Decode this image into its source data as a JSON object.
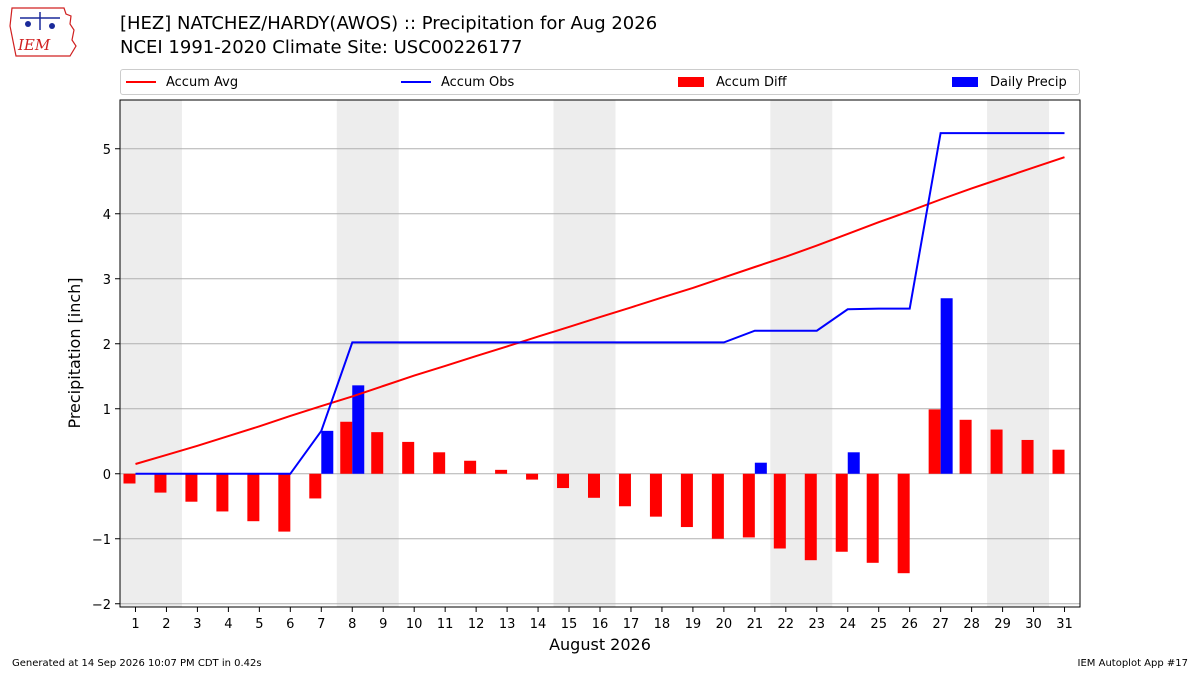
{
  "header": {
    "title_line1": "[HEZ] NATCHEZ/HARDY(AWOS) :: Precipitation for Aug 2026",
    "title_line2": "NCEI 1991-2020 Climate Site: USC00226177",
    "logo_text": "IEM"
  },
  "legend": {
    "items": [
      {
        "label": "Accum Avg",
        "color": "#ff0000",
        "kind": "line"
      },
      {
        "label": "Accum Obs",
        "color": "#0000ff",
        "kind": "line"
      },
      {
        "label": "Accum Diff",
        "color": "#ff0000",
        "kind": "bar"
      },
      {
        "label": "Daily Precip",
        "color": "#0000ff",
        "kind": "bar"
      }
    ]
  },
  "chart_data": {
    "type": "bar",
    "xlabel": "August 2026",
    "ylabel": "Precipitation [inch]",
    "ylim": [
      -2.05,
      5.75
    ],
    "yticks": [
      -2,
      -1,
      0,
      1,
      2,
      3,
      4,
      5
    ],
    "grid": true,
    "legend_position": "top",
    "x": [
      1,
      2,
      3,
      4,
      5,
      6,
      7,
      8,
      9,
      10,
      11,
      12,
      13,
      14,
      15,
      16,
      17,
      18,
      19,
      20,
      21,
      22,
      23,
      24,
      25,
      26,
      27,
      28,
      29,
      30,
      31
    ],
    "weekend_shading": [
      [
        1,
        2
      ],
      [
        8,
        9
      ],
      [
        15,
        16
      ],
      [
        22,
        23
      ],
      [
        29,
        30
      ]
    ],
    "series": [
      {
        "name": "Accum Avg",
        "kind": "line",
        "color": "#ff0000",
        "values": [
          0.15,
          0.29,
          0.43,
          0.58,
          0.73,
          0.89,
          1.04,
          1.19,
          1.35,
          1.51,
          1.66,
          1.81,
          1.96,
          2.11,
          2.26,
          2.41,
          2.56,
          2.71,
          2.86,
          3.02,
          3.18,
          3.34,
          3.51,
          3.69,
          3.87,
          4.04,
          4.22,
          4.39,
          4.55,
          4.71,
          4.87
        ]
      },
      {
        "name": "Accum Obs",
        "kind": "line",
        "color": "#0000ff",
        "values": [
          0,
          0,
          0,
          0,
          0,
          0,
          0.66,
          2.02,
          2.02,
          2.02,
          2.02,
          2.02,
          2.02,
          2.02,
          2.02,
          2.02,
          2.02,
          2.02,
          2.02,
          2.02,
          2.2,
          2.2,
          2.2,
          2.53,
          2.54,
          2.54,
          5.24,
          5.24,
          5.24,
          5.24,
          5.24
        ]
      },
      {
        "name": "Accum Diff",
        "kind": "bar",
        "color": "#ff0000",
        "values": [
          -0.15,
          -0.29,
          -0.43,
          -0.58,
          -0.73,
          -0.89,
          -0.38,
          0.8,
          0.64,
          0.49,
          0.33,
          0.2,
          0.06,
          -0.09,
          -0.22,
          -0.37,
          -0.5,
          -0.66,
          -0.82,
          -1.0,
          -0.98,
          -1.15,
          -1.33,
          -1.2,
          -1.37,
          -1.53,
          0.99,
          0.83,
          0.68,
          0.52,
          0.37
        ]
      },
      {
        "name": "Daily Precip",
        "kind": "bar",
        "color": "#0000ff",
        "values": [
          0,
          0,
          0,
          0,
          0,
          0,
          0.66,
          1.36,
          0,
          0,
          0,
          0,
          0,
          0,
          0,
          0,
          0,
          0,
          0,
          0,
          0.17,
          0,
          0,
          0.33,
          0,
          0,
          2.7,
          0,
          0,
          0,
          0
        ]
      }
    ]
  },
  "footer": {
    "left": "Generated at 14 Sep 2026 10:07 PM CDT in 0.42s",
    "right": "IEM Autoplot App #17"
  }
}
